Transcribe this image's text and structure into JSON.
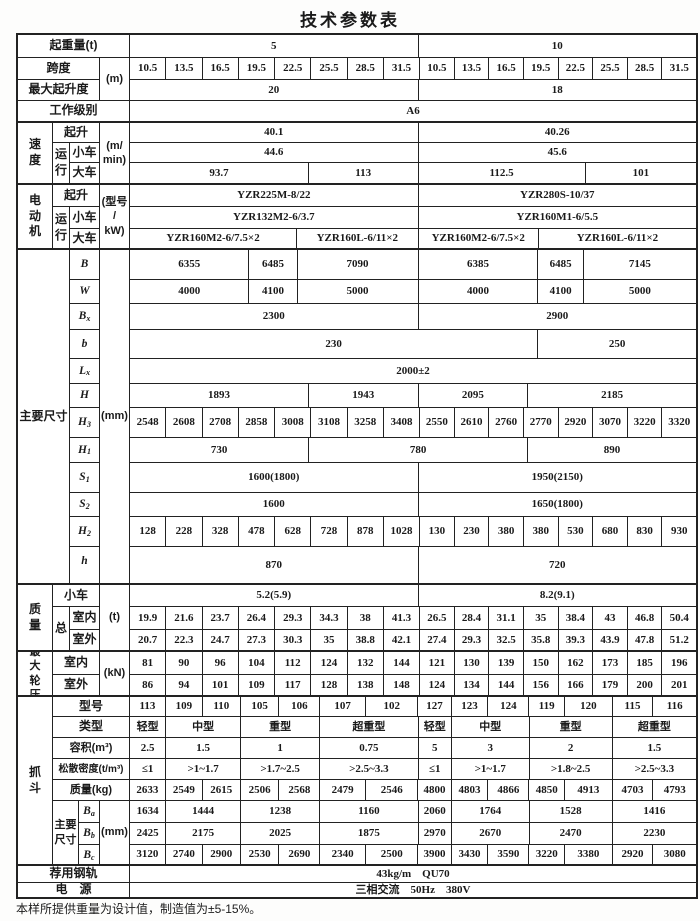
{
  "title": "技术参数表",
  "footnote": "本样所提供重量为设计值，制造值为±5-15%。",
  "colors": {
    "ink": "#1a1a1a",
    "border": "#222222",
    "paper": "#ffffff"
  },
  "labels": {
    "lifting_capacity": "起重量(t)",
    "span": "跨度",
    "m_unit": "(m)",
    "max_lift_height": "最大起升度",
    "duty_class": "工作级别",
    "speed": "速\n度",
    "hoist": "起升",
    "travel": "运\n行",
    "trolley": "小车",
    "crane": "大车",
    "speed_unit": "(m/\nmin)",
    "motor": "电\n动\n机",
    "motor_unit": "(型号\n/\nkW)",
    "main_dims": "主要尺寸",
    "mm_unit": "(mm)",
    "mass": "质\n量",
    "total": "总",
    "indoor": "室内",
    "outdoor": "室外",
    "t_unit": "(t)",
    "max_wheel_load": "最\n大\n轮\n压",
    "kn_unit": "(kN)",
    "grab": "抓\n斗",
    "model": "型号",
    "type": "类型",
    "capacity": "容积(m³)",
    "bulk_density": "松散密度(t/m³)",
    "mass_kg": "质量(kg)",
    "grab_main_dims": "主要\n尺寸",
    "rail": "荐用钢轨",
    "power": "电　源"
  },
  "cols": {
    "dim_sym": [
      [
        "B",
        30
      ],
      [
        "W",
        24
      ],
      [
        "B_x",
        26
      ],
      [
        "b",
        29
      ],
      [
        "L_x",
        25
      ],
      [
        "H",
        24
      ],
      [
        "H_3",
        30
      ],
      [
        "H_1",
        25
      ],
      [
        "S_1",
        30
      ],
      [
        "S_2",
        24
      ],
      [
        "H_2",
        30
      ],
      [
        "h",
        28
      ]
    ],
    "grab_sym": [
      [
        "B_a",
        22
      ],
      [
        "B_b",
        22
      ],
      [
        "B_c",
        21
      ]
    ]
  },
  "rows": {
    "capacity": [
      [
        "5",
        509
      ],
      [
        "10",
        491
      ]
    ],
    "span": [
      [
        "10.5",
        64
      ],
      [
        "13.5",
        64
      ],
      [
        "16.5",
        64
      ],
      [
        "19.5",
        64
      ],
      [
        "22.5",
        64
      ],
      [
        "25.5",
        64
      ],
      [
        "28.5",
        64
      ],
      [
        "31.5",
        64
      ],
      [
        "10.5",
        61
      ],
      [
        "13.5",
        61
      ],
      [
        "16.5",
        61
      ],
      [
        "19.5",
        61
      ],
      [
        "22.5",
        61
      ],
      [
        "25.5",
        61
      ],
      [
        "28.5",
        61
      ],
      [
        "31.5",
        61
      ]
    ],
    "max_height": [
      [
        "20",
        509
      ],
      [
        "18",
        491
      ]
    ],
    "duty": [
      [
        "A6",
        1000
      ]
    ],
    "v_hoist": [
      [
        "40.1",
        509
      ],
      [
        "40.26",
        491
      ]
    ],
    "v_trolley": [
      [
        "44.6",
        509
      ],
      [
        "45.6",
        491
      ]
    ],
    "v_crane": [
      [
        "93.7",
        316
      ],
      [
        "113",
        193
      ],
      [
        "112.5",
        295
      ],
      [
        "101",
        196
      ]
    ],
    "m_hoist": [
      [
        "YZR225M-8/22",
        509
      ],
      [
        "YZR280S-10/37",
        491
      ]
    ],
    "m_trolley": [
      [
        "YZR132M2-6/3.7",
        509
      ],
      [
        "YZR160M1-6/5.5",
        491
      ]
    ],
    "m_crane": [
      [
        "YZR160M2-6/7.5×2",
        295
      ],
      [
        "YZR160L-6/11×2",
        214
      ],
      [
        "YZR160M2-6/7.5×2",
        212
      ],
      [
        "YZR160L-6/11×2",
        279
      ]
    ],
    "dim_B": [
      [
        "6355",
        211
      ],
      [
        "6485",
        84
      ],
      [
        "7090",
        214
      ],
      [
        "6385",
        212
      ],
      [
        "6485",
        79
      ],
      [
        "7145",
        200
      ]
    ],
    "dim_W": [
      [
        "4000",
        211
      ],
      [
        "4100",
        84
      ],
      [
        "5000",
        214
      ],
      [
        "4000",
        212
      ],
      [
        "4100",
        79
      ],
      [
        "5000",
        200
      ]
    ],
    "dim_Bx": [
      [
        "2300",
        509
      ],
      [
        "2900",
        491
      ]
    ],
    "dim_b": [
      [
        "230",
        721
      ],
      [
        "250",
        279
      ]
    ],
    "dim_Lx": [
      [
        "2000±2",
        1000
      ]
    ],
    "dim_H": [
      [
        "1893",
        316
      ],
      [
        "1943",
        193
      ],
      [
        "2095",
        193
      ],
      [
        "2185",
        298
      ]
    ],
    "dim_H3": [
      [
        "2548",
        64
      ],
      [
        "2608",
        64
      ],
      [
        "2708",
        64
      ],
      [
        "2858",
        64
      ],
      [
        "3008",
        64
      ],
      [
        "3108",
        64
      ],
      [
        "3258",
        64
      ],
      [
        "3408",
        64
      ],
      [
        "2550",
        61
      ],
      [
        "2610",
        61
      ],
      [
        "2760",
        61
      ],
      [
        "2770",
        61
      ],
      [
        "2920",
        61
      ],
      [
        "3070",
        61
      ],
      [
        "3220",
        61
      ],
      [
        "3320",
        61
      ]
    ],
    "dim_H1": [
      [
        "730",
        316
      ],
      [
        "780",
        386
      ],
      [
        "890",
        298
      ]
    ],
    "dim_S1": [
      [
        "1600(1800)",
        509
      ],
      [
        "1950(2150)",
        491
      ]
    ],
    "dim_S2": [
      [
        "1600",
        509
      ],
      [
        "1650(1800)",
        491
      ]
    ],
    "dim_H2": [
      [
        "128",
        64
      ],
      [
        "228",
        64
      ],
      [
        "328",
        64
      ],
      [
        "478",
        64
      ],
      [
        "628",
        64
      ],
      [
        "728",
        64
      ],
      [
        "878",
        64
      ],
      [
        "1028",
        64
      ],
      [
        "130",
        61
      ],
      [
        "230",
        61
      ],
      [
        "380",
        61
      ],
      [
        "380",
        61
      ],
      [
        "530",
        61
      ],
      [
        "680",
        61
      ],
      [
        "830",
        61
      ],
      [
        "930",
        61
      ]
    ],
    "dim_h": [
      [
        "870",
        509
      ],
      [
        "720",
        491
      ]
    ],
    "mass_trolley": [
      [
        "5.2(5.9)",
        509
      ],
      [
        "8.2(9.1)",
        491
      ]
    ],
    "mass_indoor": [
      [
        "19.9",
        64
      ],
      [
        "21.6",
        64
      ],
      [
        "23.7",
        64
      ],
      [
        "26.4",
        64
      ],
      [
        "29.3",
        64
      ],
      [
        "34.3",
        64
      ],
      [
        "38",
        64
      ],
      [
        "41.3",
        64
      ],
      [
        "26.5",
        61
      ],
      [
        "28.4",
        61
      ],
      [
        "31.1",
        61
      ],
      [
        "35",
        61
      ],
      [
        "38.4",
        61
      ],
      [
        "43",
        61
      ],
      [
        "46.8",
        61
      ],
      [
        "50.4",
        61
      ]
    ],
    "mass_outdoor": [
      [
        "20.7",
        64
      ],
      [
        "22.3",
        64
      ],
      [
        "24.7",
        64
      ],
      [
        "27.3",
        64
      ],
      [
        "30.3",
        64
      ],
      [
        "35",
        64
      ],
      [
        "38.8",
        64
      ],
      [
        "42.1",
        64
      ],
      [
        "27.4",
        61
      ],
      [
        "29.3",
        61
      ],
      [
        "32.5",
        61
      ],
      [
        "35.8",
        61
      ],
      [
        "39.3",
        61
      ],
      [
        "43.9",
        61
      ],
      [
        "47.8",
        61
      ],
      [
        "51.2",
        61
      ]
    ],
    "wheel_indoor": [
      [
        "81",
        64
      ],
      [
        "90",
        64
      ],
      [
        "96",
        64
      ],
      [
        "104",
        64
      ],
      [
        "112",
        64
      ],
      [
        "124",
        64
      ],
      [
        "132",
        64
      ],
      [
        "144",
        64
      ],
      [
        "121",
        61
      ],
      [
        "130",
        61
      ],
      [
        "139",
        61
      ],
      [
        "150",
        61
      ],
      [
        "162",
        61
      ],
      [
        "173",
        61
      ],
      [
        "185",
        61
      ],
      [
        "196",
        61
      ]
    ],
    "wheel_outdoor": [
      [
        "86",
        64
      ],
      [
        "94",
        64
      ],
      [
        "101",
        64
      ],
      [
        "109",
        64
      ],
      [
        "117",
        64
      ],
      [
        "128",
        64
      ],
      [
        "138",
        64
      ],
      [
        "148",
        64
      ],
      [
        "124",
        61
      ],
      [
        "134",
        61
      ],
      [
        "144",
        61
      ],
      [
        "156",
        61
      ],
      [
        "166",
        61
      ],
      [
        "179",
        61
      ],
      [
        "200",
        61
      ],
      [
        "201",
        61
      ]
    ],
    "grab_model": [
      [
        "113",
        63
      ],
      [
        "109",
        65
      ],
      [
        "110",
        67
      ],
      [
        "105",
        68
      ],
      [
        "106",
        72
      ],
      [
        "107",
        81
      ],
      [
        "102",
        93
      ],
      [
        "127",
        58
      ],
      [
        "123",
        65
      ],
      [
        "124",
        72
      ],
      [
        "119",
        63
      ],
      [
        "120",
        84
      ],
      [
        "115",
        72
      ],
      [
        "116",
        77
      ]
    ],
    "grab_type": [
      [
        "轻型",
        63
      ],
      [
        "中型",
        132
      ],
      [
        "重型",
        140
      ],
      [
        "超重型",
        174
      ],
      [
        "轻型",
        58
      ],
      [
        "中型",
        137
      ],
      [
        "重型",
        147
      ],
      [
        "超重型",
        149
      ]
    ],
    "grab_capacity": [
      [
        "2.5",
        63
      ],
      [
        "1.5",
        132
      ],
      [
        "1",
        140
      ],
      [
        "0.75",
        174
      ],
      [
        "5",
        58
      ],
      [
        "3",
        137
      ],
      [
        "2",
        147
      ],
      [
        "1.5",
        149
      ]
    ],
    "grab_density": [
      [
        "≤1",
        63
      ],
      [
        ">1~1.7",
        132
      ],
      [
        ">1.7~2.5",
        140
      ],
      [
        ">2.5~3.3",
        174
      ],
      [
        "≤1",
        58
      ],
      [
        ">1~1.7",
        137
      ],
      [
        ">1.8~2.5",
        147
      ],
      [
        ">2.5~3.3",
        149
      ]
    ],
    "grab_mass": [
      [
        "2633",
        63
      ],
      [
        "2549",
        65
      ],
      [
        "2615",
        67
      ],
      [
        "2506",
        68
      ],
      [
        "2568",
        72
      ],
      [
        "2479",
        81
      ],
      [
        "2546",
        93
      ],
      [
        "4800",
        58
      ],
      [
        "4803",
        65
      ],
      [
        "4866",
        72
      ],
      [
        "4850",
        63
      ],
      [
        "4913",
        84
      ],
      [
        "4703",
        72
      ],
      [
        "4793",
        77
      ]
    ],
    "grab_Ba": [
      [
        "1634",
        63
      ],
      [
        "1444",
        132
      ],
      [
        "1238",
        140
      ],
      [
        "1160",
        174
      ],
      [
        "2060",
        58
      ],
      [
        "1764",
        137
      ],
      [
        "1528",
        147
      ],
      [
        "1416",
        149
      ]
    ],
    "grab_Bb": [
      [
        "2425",
        63
      ],
      [
        "2175",
        132
      ],
      [
        "2025",
        140
      ],
      [
        "1875",
        174
      ],
      [
        "2970",
        58
      ],
      [
        "2670",
        137
      ],
      [
        "2470",
        147
      ],
      [
        "2230",
        149
      ]
    ],
    "grab_Bc": [
      [
        "3120",
        63
      ],
      [
        "2740",
        65
      ],
      [
        "2900",
        67
      ],
      [
        "2530",
        68
      ],
      [
        "2690",
        72
      ],
      [
        "2340",
        81
      ],
      [
        "2500",
        93
      ],
      [
        "3900",
        58
      ],
      [
        "3430",
        65
      ],
      [
        "3590",
        72
      ],
      [
        "3220",
        63
      ],
      [
        "3380",
        84
      ],
      [
        "2920",
        72
      ],
      [
        "3080",
        77
      ]
    ],
    "rail": [
      [
        "43kg/m　QU70",
        1000
      ]
    ],
    "power": [
      [
        "三相交流　50Hz　380V",
        1000
      ]
    ]
  }
}
